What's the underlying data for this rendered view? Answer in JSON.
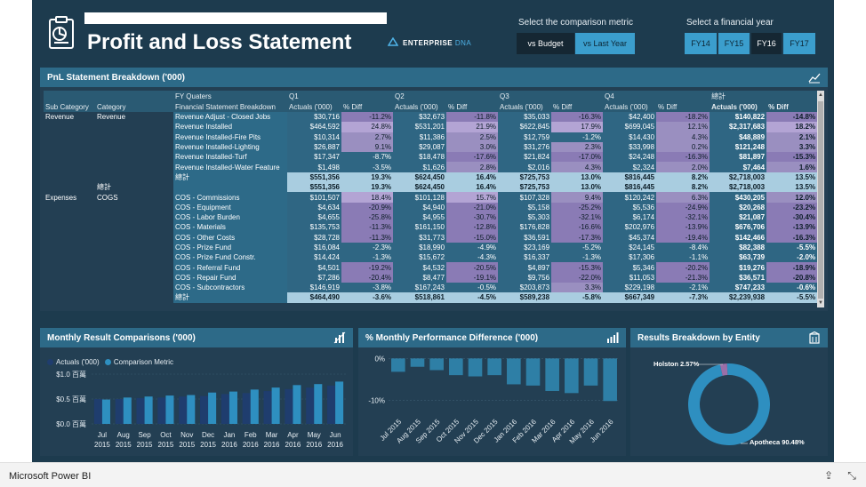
{
  "header": {
    "title": "Profit and Loss Statement",
    "brand_name": "ENTERPRISE",
    "brand_accent": "DNA",
    "metric_label": "Select the comparison metric",
    "metric_buttons": [
      "vs Budget",
      "vs Last Year"
    ],
    "year_label": "Select a financial year",
    "year_buttons": [
      "FY14",
      "FY15",
      "FY16",
      "FY17"
    ]
  },
  "table_panel": {
    "title": "PnL Statement Breakdown ('000)",
    "header_row1": {
      "fy": "FY Quaters",
      "q1": "Q1",
      "q2": "Q2",
      "q3": "Q3",
      "q4": "Q4",
      "total": "總計"
    },
    "header_row2": {
      "sub": "Sub Category",
      "cat": "Category",
      "fs": "Financial Statement Breakdown",
      "act": "Actuals ('000)",
      "diff": "% Diff"
    },
    "rows": [
      {
        "sub": "Revenue",
        "cat": "Revenue",
        "fs": "Revenue Adjust - Closed Jobs",
        "v": [
          "$30,716",
          "-11.2%",
          "$32,673",
          "-11.8%",
          "$35,033",
          "-16.3%",
          "$42,400",
          "-18.2%",
          "$140,822",
          "-14.8%"
        ]
      },
      {
        "sub": "",
        "cat": "",
        "fs": "Revenue Installed",
        "v": [
          "$464,592",
          "24.8%",
          "$531,201",
          "21.9%",
          "$622,845",
          "17.9%",
          "$699,045",
          "12.1%",
          "$2,317,683",
          "18.2%"
        ]
      },
      {
        "sub": "",
        "cat": "",
        "fs": "Revenue Installed-Fire Pits",
        "v": [
          "$10,314",
          "2.7%",
          "$11,386",
          "2.5%",
          "$12,759",
          "-1.2%",
          "$14,430",
          "4.3%",
          "$48,889",
          "2.1%"
        ]
      },
      {
        "sub": "",
        "cat": "",
        "fs": "Revenue Installed-Lighting",
        "v": [
          "$26,887",
          "9.1%",
          "$29,087",
          "3.0%",
          "$31,276",
          "2.3%",
          "$33,998",
          "0.2%",
          "$121,248",
          "3.3%"
        ]
      },
      {
        "sub": "",
        "cat": "",
        "fs": "Revenue Installed-Turf",
        "v": [
          "$17,347",
          "-8.7%",
          "$18,478",
          "-17.6%",
          "$21,824",
          "-17.0%",
          "$24,248",
          "-16.3%",
          "$81,897",
          "-15.3%"
        ]
      },
      {
        "sub": "",
        "cat": "",
        "fs": "Revenue Installed-Water Feature",
        "v": [
          "$1,498",
          "-3.5%",
          "$1,626",
          "2.8%",
          "$2,016",
          "4.3%",
          "$2,324",
          "2.0%",
          "$7,464",
          "1.6%"
        ]
      },
      {
        "sub": "",
        "cat": "",
        "fs": "總計",
        "total": true,
        "v": [
          "$551,356",
          "19.3%",
          "$624,450",
          "16.4%",
          "$725,753",
          "13.0%",
          "$816,445",
          "8.2%",
          "$2,718,003",
          "13.5%"
        ]
      },
      {
        "sub": "",
        "cat": "總計",
        "fs": "",
        "total": true,
        "v": [
          "$551,356",
          "19.3%",
          "$624,450",
          "16.4%",
          "$725,753",
          "13.0%",
          "$816,445",
          "8.2%",
          "$2,718,003",
          "13.5%"
        ]
      },
      {
        "sub": "Expenses",
        "cat": "COGS",
        "fs": "COS - Commissions",
        "v": [
          "$101,507",
          "18.4%",
          "$101,128",
          "15.7%",
          "$107,328",
          "9.4%",
          "$120,242",
          "6.3%",
          "$430,205",
          "12.0%"
        ]
      },
      {
        "sub": "",
        "cat": "",
        "fs": "COS - Equipment",
        "v": [
          "$4,634",
          "-20.9%",
          "$4,940",
          "-21.0%",
          "$5,158",
          "-25.2%",
          "$5,536",
          "-24.9%",
          "$20,268",
          "-23.2%"
        ]
      },
      {
        "sub": "",
        "cat": "",
        "fs": "COS - Labor Burden",
        "v": [
          "$4,655",
          "-25.8%",
          "$4,955",
          "-30.7%",
          "$5,303",
          "-32.1%",
          "$6,174",
          "-32.1%",
          "$21,087",
          "-30.4%"
        ]
      },
      {
        "sub": "",
        "cat": "",
        "fs": "COS - Materials",
        "v": [
          "$135,753",
          "-11.3%",
          "$161,150",
          "-12.8%",
          "$176,828",
          "-16.6%",
          "$202,976",
          "-13.9%",
          "$676,706",
          "-13.9%"
        ]
      },
      {
        "sub": "",
        "cat": "",
        "fs": "COS - Other Costs",
        "v": [
          "$28,728",
          "-11.3%",
          "$31,773",
          "-15.0%",
          "$36,591",
          "-17.3%",
          "$45,374",
          "-19.4%",
          "$142,466",
          "-16.3%"
        ]
      },
      {
        "sub": "",
        "cat": "",
        "fs": "COS - Prize Fund",
        "v": [
          "$16,084",
          "-2.3%",
          "$18,990",
          "-4.9%",
          "$23,169",
          "-5.2%",
          "$24,145",
          "-8.4%",
          "$82,388",
          "-5.5%"
        ]
      },
      {
        "sub": "",
        "cat": "",
        "fs": "COS - Prize Fund Constr.",
        "v": [
          "$14,424",
          "-1.3%",
          "$15,672",
          "-4.3%",
          "$16,337",
          "-1.3%",
          "$17,306",
          "-1.1%",
          "$63,739",
          "-2.0%"
        ]
      },
      {
        "sub": "",
        "cat": "",
        "fs": "COS - Referral Fund",
        "v": [
          "$4,501",
          "-19.2%",
          "$4,532",
          "-20.5%",
          "$4,897",
          "-15.3%",
          "$5,346",
          "-20.2%",
          "$19,276",
          "-18.9%"
        ]
      },
      {
        "sub": "",
        "cat": "",
        "fs": "COS - Repair Fund",
        "v": [
          "$7,286",
          "-20.4%",
          "$8,477",
          "-19.1%",
          "$9,756",
          "-22.0%",
          "$11,053",
          "-21.3%",
          "$36,571",
          "-20.8%"
        ]
      },
      {
        "sub": "",
        "cat": "",
        "fs": "COS - Subcontractors",
        "v": [
          "$146,919",
          "-3.8%",
          "$167,243",
          "-0.5%",
          "$203,873",
          "3.3%",
          "$229,198",
          "-2.1%",
          "$747,233",
          "-0.6%"
        ]
      },
      {
        "sub": "",
        "cat": "",
        "fs": "總計",
        "total": true,
        "v": [
          "$464,490",
          "-3.6%",
          "$518,861",
          "-4.5%",
          "$589,238",
          "-5.8%",
          "$667,349",
          "-7.3%",
          "$2,239,938",
          "-5.5%"
        ]
      }
    ]
  },
  "monthly_panel": {
    "title": "Monthly Result Comparisons ('000)",
    "legend_actuals": "Actuals ('000)",
    "legend_comparison": "Comparison Metric",
    "colors": {
      "actuals": "#1f3d6e",
      "comparison": "#2e8fc0"
    }
  },
  "perf_panel": {
    "title": "% Monthly Performance Difference ('000)",
    "bar_color": "#2e7fa6"
  },
  "entity_panel": {
    "title": "Results Breakdown by Entity",
    "colors": {
      "apotheca": "#2e8fc0",
      "holston": "#9b6fa8"
    }
  },
  "status_bar": {
    "app_name": "Microsoft Power BI"
  },
  "chart_data": [
    {
      "type": "bar",
      "title": "Monthly Result Comparisons ('000)",
      "categories": [
        "Jul 2015",
        "Aug 2015",
        "Sep 2015",
        "Oct 2015",
        "Nov 2015",
        "Dec 2015",
        "Jan 2016",
        "Feb 2016",
        "Mar 2016",
        "Apr 2016",
        "May 2016",
        "Jun 2016"
      ],
      "category_lines": [
        [
          "Jul",
          "2015"
        ],
        [
          "Aug",
          "2015"
        ],
        [
          "Sep",
          "2015"
        ],
        [
          "Oct",
          "2015"
        ],
        [
          "Nov",
          "2015"
        ],
        [
          "Dec",
          "2015"
        ],
        [
          "Jan",
          "2016"
        ],
        [
          "Feb",
          "2016"
        ],
        [
          "Mar",
          "2016"
        ],
        [
          "Apr",
          "2016"
        ],
        [
          "May",
          "2016"
        ],
        [
          "Jun",
          "2016"
        ]
      ],
      "series": [
        {
          "name": "Actuals ('000)",
          "values": [
            0.5,
            0.5,
            0.52,
            0.53,
            0.55,
            0.56,
            0.6,
            0.62,
            0.66,
            0.7,
            0.73,
            0.77
          ]
        },
        {
          "name": "Comparison Metric",
          "values": [
            0.49,
            0.53,
            0.55,
            0.57,
            0.58,
            0.63,
            0.65,
            0.69,
            0.73,
            0.78,
            0.8,
            0.85
          ]
        }
      ],
      "ylim": [
        0,
        1.0
      ],
      "yticks": [
        0,
        0.5,
        1.0
      ],
      "ytick_labels": [
        "$0.0 百萬",
        "$0.5 百萬",
        "$1.0 百萬"
      ],
      "legend": "top-left",
      "grid": false
    },
    {
      "type": "bar",
      "title": "% Monthly Performance Difference ('000)",
      "categories": [
        "Jul 2015",
        "Aug 2015",
        "Sep 2015",
        "Oct 2015",
        "Nov 2015",
        "Dec 2015",
        "Jan 2016",
        "Feb 2016",
        "Mar 2016",
        "Apr 2016",
        "May 2016",
        "Jun 2016"
      ],
      "values": [
        -3.2,
        -2.0,
        -2.8,
        -4.0,
        -4.3,
        -4.0,
        -6.2,
        -6.5,
        -7.8,
        -8.3,
        -6.5,
        -10.2
      ],
      "ylim": [
        -11,
        0.5
      ],
      "yticks": [
        0,
        -10
      ],
      "ytick_labels": [
        "0%",
        "-10%"
      ],
      "grid": true
    },
    {
      "type": "pie",
      "title": "Results Breakdown by Entity",
      "labels": [
        "Apotheca",
        "Holston"
      ],
      "values": [
        90.48,
        2.57
      ],
      "value_labels": [
        "Apotheca 90.48%",
        "Holston 2.57%"
      ],
      "donut": true
    }
  ]
}
